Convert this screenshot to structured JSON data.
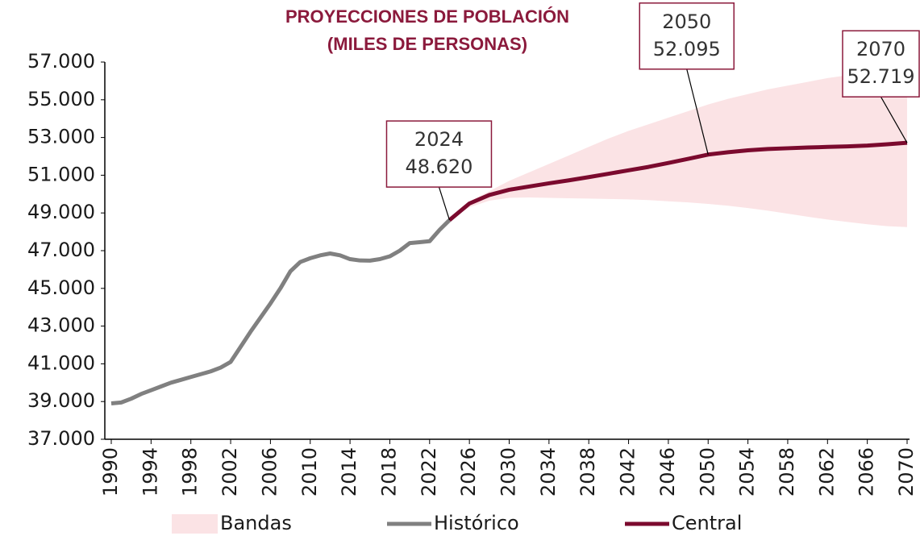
{
  "chart_data": {
    "type": "line",
    "title": [
      "PROYECCIONES DE POBLACIÓN",
      "(MILES DE PERSONAS)"
    ],
    "xlim": [
      1990,
      2070
    ],
    "xticks": [
      1990,
      1994,
      1998,
      2002,
      2006,
      2010,
      2014,
      2018,
      2022,
      2026,
      2030,
      2034,
      2038,
      2042,
      2046,
      2050,
      2054,
      2058,
      2062,
      2066,
      2070
    ],
    "ylim": [
      37000,
      57000
    ],
    "yticks": [
      {
        "value": 37000,
        "label": "37.000"
      },
      {
        "value": 39000,
        "label": "39.000"
      },
      {
        "value": 41000,
        "label": "41.000"
      },
      {
        "value": 43000,
        "label": "43.000"
      },
      {
        "value": 45000,
        "label": "45.000"
      },
      {
        "value": 47000,
        "label": "47.000"
      },
      {
        "value": 49000,
        "label": "49.000"
      },
      {
        "value": 51000,
        "label": "51.000"
      },
      {
        "value": 53000,
        "label": "53.000"
      },
      {
        "value": 55000,
        "label": "55.000"
      },
      {
        "value": 57000,
        "label": "57.000"
      }
    ],
    "bands": {
      "name": "Bandas",
      "color": "#fbe3e5",
      "x": [
        2024,
        2026,
        2028,
        2030,
        2032,
        2034,
        2036,
        2038,
        2040,
        2042,
        2044,
        2046,
        2048,
        2050,
        2052,
        2054,
        2056,
        2058,
        2060,
        2062,
        2064,
        2066,
        2068,
        2070
      ],
      "lower": [
        48620,
        49300,
        49650,
        49800,
        49820,
        49800,
        49780,
        49760,
        49740,
        49720,
        49680,
        49620,
        49560,
        49480,
        49380,
        49260,
        49120,
        48960,
        48800,
        48650,
        48520,
        48400,
        48300,
        48250
      ],
      "upper": [
        48620,
        49600,
        50150,
        50700,
        51150,
        51600,
        52050,
        52500,
        52950,
        53350,
        53700,
        54050,
        54400,
        54750,
        55050,
        55300,
        55550,
        55750,
        55950,
        56150,
        56300,
        56450,
        56550,
        56650
      ]
    },
    "series": [
      {
        "name": "Histórico",
        "color": "#808080",
        "x": [
          1990,
          1991,
          1992,
          1993,
          1994,
          1995,
          1996,
          1997,
          1998,
          1999,
          2000,
          2001,
          2002,
          2003,
          2004,
          2005,
          2006,
          2007,
          2008,
          2009,
          2010,
          2011,
          2012,
          2013,
          2014,
          2015,
          2016,
          2017,
          2018,
          2019,
          2020,
          2021,
          2022,
          2023,
          2024
        ],
        "values": [
          38900,
          38950,
          39150,
          39400,
          39600,
          39800,
          40000,
          40150,
          40300,
          40450,
          40600,
          40800,
          41100,
          41900,
          42700,
          43450,
          44200,
          45000,
          45900,
          46400,
          46600,
          46750,
          46850,
          46750,
          46550,
          46480,
          46470,
          46550,
          46700,
          47000,
          47400,
          47450,
          47500,
          48100,
          48620
        ]
      },
      {
        "name": "Central",
        "color": "#7b0a2e",
        "x": [
          2024,
          2026,
          2028,
          2030,
          2032,
          2034,
          2036,
          2038,
          2040,
          2042,
          2044,
          2046,
          2048,
          2050,
          2052,
          2054,
          2056,
          2058,
          2060,
          2062,
          2064,
          2066,
          2068,
          2070
        ],
        "values": [
          48620,
          49500,
          49950,
          50230,
          50400,
          50570,
          50730,
          50900,
          51080,
          51260,
          51440,
          51650,
          51870,
          52095,
          52220,
          52320,
          52390,
          52430,
          52470,
          52500,
          52530,
          52570,
          52640,
          52719
        ]
      }
    ],
    "annotations": [
      {
        "x": 2024,
        "value": 48620,
        "label": "48.620"
      },
      {
        "x": 2050,
        "value": 52095,
        "label": "52.095"
      },
      {
        "x": 2070,
        "value": 52719,
        "label": "52.719"
      }
    ]
  }
}
